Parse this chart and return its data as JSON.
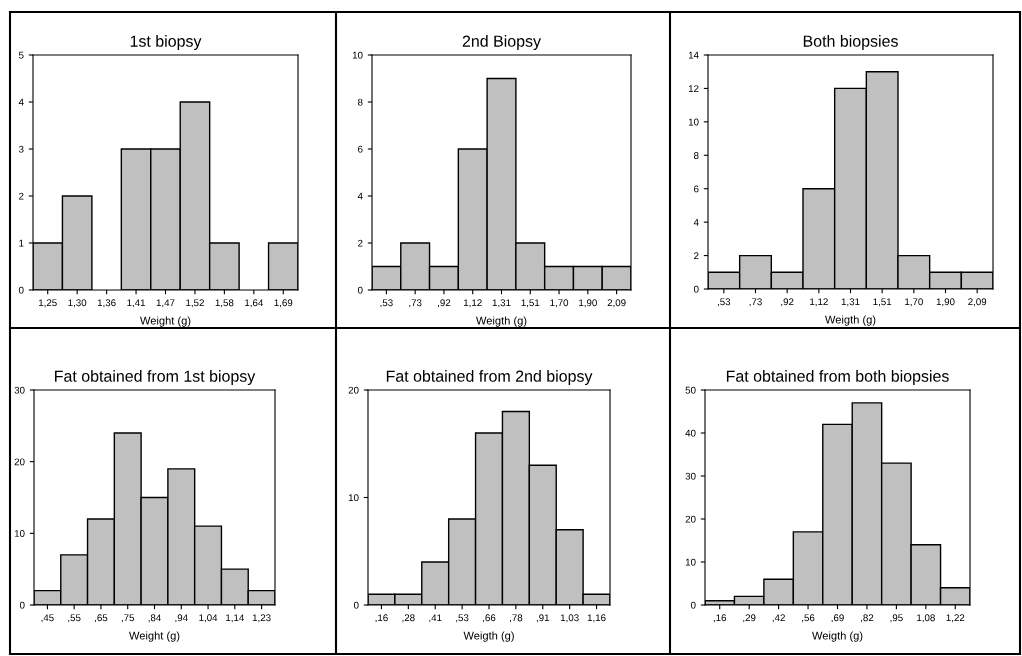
{
  "chart_data": [
    {
      "type": "bar",
      "title": "1st biopsy",
      "xlabel": "Weight (g)",
      "categories": [
        "1,25",
        "1,30",
        "1,36",
        "1,41",
        "1,47",
        "1,52",
        "1,58",
        "1,64",
        "1,69"
      ],
      "values": [
        1,
        2,
        0,
        3,
        3,
        4,
        1,
        0,
        1
      ],
      "color": "#c0c0c0",
      "ylim": [
        0,
        5
      ],
      "yticks": [
        0,
        1,
        2,
        3,
        4,
        5
      ],
      "grid": false
    },
    {
      "type": "bar",
      "title": "2nd Biopsy",
      "xlabel": "Weigth (g)",
      "categories": [
        ",53",
        ",73",
        ",92",
        "1,12",
        "1,31",
        "1,51",
        "1,70",
        "1,90",
        "2,09"
      ],
      "values": [
        1,
        2,
        1,
        6,
        9,
        2,
        1,
        1,
        1
      ],
      "color": "#c0c0c0",
      "ylim": [
        0,
        10
      ],
      "yticks": [
        0,
        2,
        4,
        6,
        8,
        10
      ],
      "grid": false
    },
    {
      "type": "bar",
      "title": "Both biopsies",
      "xlabel": "Weigth (g)",
      "categories": [
        ",53",
        ",73",
        ",92",
        "1,12",
        "1,31",
        "1,51",
        "1,70",
        "1,90",
        "2,09"
      ],
      "values": [
        1,
        2,
        1,
        6,
        12,
        13,
        2,
        1,
        1
      ],
      "color": "#c0c0c0",
      "ylim": [
        0,
        14
      ],
      "yticks": [
        0,
        2,
        4,
        6,
        8,
        10,
        12,
        14
      ],
      "grid": false
    },
    {
      "type": "bar",
      "title": "Fat obtained from 1st biopsy",
      "xlabel": "Weight (g)",
      "categories": [
        ",45",
        ",55",
        ",65",
        ",75",
        ",84",
        ",94",
        "1,04",
        "1,14",
        "1,23"
      ],
      "values": [
        2,
        7,
        12,
        24,
        15,
        19,
        11,
        5,
        2
      ],
      "color": "#c0c0c0",
      "ylim": [
        0,
        30
      ],
      "yticks": [
        0,
        10,
        20,
        30
      ],
      "grid": false
    },
    {
      "type": "bar",
      "title": "Fat obtained from 2nd biopsy",
      "xlabel": "Weigth (g)",
      "categories": [
        ",16",
        ",28",
        ",41",
        ",53",
        ",66",
        ",78",
        ",91",
        "1,03",
        "1,16"
      ],
      "values": [
        1,
        1,
        4,
        8,
        16,
        18,
        13,
        7,
        1
      ],
      "color": "#c0c0c0",
      "ylim": [
        0,
        20
      ],
      "yticks": [
        0,
        10,
        20
      ],
      "grid": false
    },
    {
      "type": "bar",
      "title": "Fat obtained from both biopsies",
      "xlabel": "Weigth (g)",
      "categories": [
        ",16",
        ",29",
        ",42",
        ",56",
        ",69",
        ",82",
        ",95",
        "1,08",
        "1,22"
      ],
      "values": [
        1,
        2,
        6,
        17,
        42,
        47,
        33,
        14,
        4
      ],
      "color": "#c0c0c0",
      "ylim": [
        0,
        50
      ],
      "yticks": [
        0,
        10,
        20,
        30,
        40,
        50
      ],
      "grid": false
    }
  ]
}
